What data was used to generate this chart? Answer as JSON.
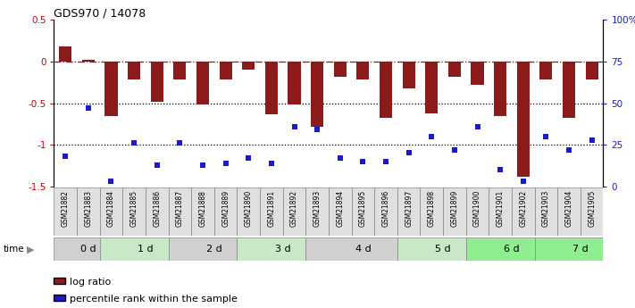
{
  "title": "GDS970 / 14078",
  "samples": [
    "GSM21882",
    "GSM21883",
    "GSM21884",
    "GSM21885",
    "GSM21886",
    "GSM21887",
    "GSM21888",
    "GSM21889",
    "GSM21890",
    "GSM21891",
    "GSM21892",
    "GSM21893",
    "GSM21894",
    "GSM21895",
    "GSM21896",
    "GSM21897",
    "GSM21898",
    "GSM21899",
    "GSM21900",
    "GSM21901",
    "GSM21902",
    "GSM21903",
    "GSM21904",
    "GSM21905"
  ],
  "log_ratio": [
    0.18,
    0.02,
    -0.65,
    -0.22,
    -0.48,
    -0.22,
    -0.52,
    -0.22,
    -0.1,
    -0.63,
    -0.52,
    -0.78,
    -0.18,
    -0.22,
    -0.68,
    -0.32,
    -0.62,
    -0.18,
    -0.28,
    -0.65,
    -1.38,
    -0.22,
    -0.68,
    -0.22
  ],
  "percentile": [
    18,
    47,
    3,
    26,
    13,
    26,
    13,
    14,
    17,
    14,
    36,
    34,
    17,
    15,
    15,
    20,
    30,
    22,
    36,
    10,
    3,
    30,
    22,
    28
  ],
  "time_groups": [
    {
      "label": "0 d",
      "start": 0,
      "end": 2,
      "color": "#d0d0d0"
    },
    {
      "label": "1 d",
      "start": 2,
      "end": 5,
      "color": "#c8e8c8"
    },
    {
      "label": "2 d",
      "start": 5,
      "end": 8,
      "color": "#d0d0d0"
    },
    {
      "label": "3 d",
      "start": 8,
      "end": 11,
      "color": "#c8e8c8"
    },
    {
      "label": "4 d",
      "start": 11,
      "end": 15,
      "color": "#d0d0d0"
    },
    {
      "label": "5 d",
      "start": 15,
      "end": 18,
      "color": "#c8e8c8"
    },
    {
      "label": "6 d",
      "start": 18,
      "end": 21,
      "color": "#90ee90"
    },
    {
      "label": "7 d",
      "start": 21,
      "end": 24,
      "color": "#90ee90"
    }
  ],
  "bar_color": "#8b1a1a",
  "dot_color": "#1a1acc",
  "ylim_left": [
    -1.5,
    0.5
  ],
  "ylim_right": [
    0,
    100
  ],
  "right_yticks": [
    0,
    25,
    50,
    75,
    100
  ],
  "right_yticklabels": [
    "0",
    "25",
    "50",
    "75",
    "100%"
  ],
  "legend_bar": "log ratio",
  "legend_dot": "percentile rank within the sample",
  "fig_width": 7.11,
  "fig_height": 3.45,
  "dpi": 100
}
